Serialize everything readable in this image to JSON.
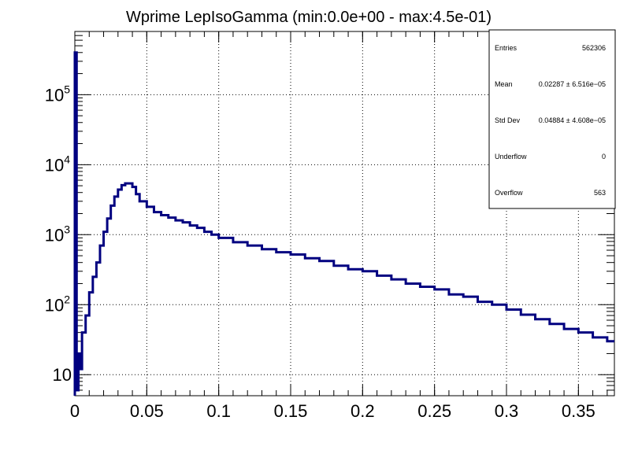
{
  "chart_data": {
    "type": "line",
    "title": "Wprime LepIsoGamma (min:0.0e+00 - max:4.5e-01)",
    "xlabel": "",
    "ylabel": "",
    "xlim": [
      0,
      0.375
    ],
    "ylim": [
      5,
      800000
    ],
    "y_scale": "log",
    "grid": true,
    "line_color": "#000080",
    "x_tick_labels": [
      "0",
      "0.05",
      "0.1",
      "0.15",
      "0.2",
      "0.25",
      "0.3",
      "0.35"
    ],
    "x_ticks": [
      0,
      0.05,
      0.1,
      0.15,
      0.2,
      0.25,
      0.3,
      0.35
    ],
    "y_tick_labels": [
      {
        "base": "10",
        "exp": "",
        "value": 10
      },
      {
        "base": "10",
        "exp": "2",
        "value": 100
      },
      {
        "base": "10",
        "exp": "3",
        "value": 1000
      },
      {
        "base": "10",
        "exp": "4",
        "value": 10000
      },
      {
        "base": "10",
        "exp": "5",
        "value": 100000
      }
    ],
    "x": [
      0.0,
      0.00125,
      0.0025,
      0.00375,
      0.005,
      0.0075,
      0.01,
      0.0125,
      0.015,
      0.0175,
      0.02,
      0.0225,
      0.025,
      0.0275,
      0.03,
      0.0325,
      0.035,
      0.0375,
      0.04,
      0.0425,
      0.045,
      0.05,
      0.055,
      0.06,
      0.065,
      0.07,
      0.075,
      0.08,
      0.085,
      0.09,
      0.095,
      0.1,
      0.11,
      0.12,
      0.13,
      0.14,
      0.15,
      0.16,
      0.17,
      0.18,
      0.19,
      0.2,
      0.21,
      0.22,
      0.23,
      0.24,
      0.25,
      0.26,
      0.27,
      0.28,
      0.29,
      0.3,
      0.31,
      0.32,
      0.33,
      0.34,
      0.35,
      0.36,
      0.37
    ],
    "y": [
      400000,
      6,
      20,
      12,
      40,
      70,
      150,
      250,
      400,
      700,
      1100,
      1700,
      2600,
      3500,
      4400,
      5100,
      5400,
      5400,
      4800,
      3800,
      3000,
      2500,
      2100,
      1900,
      1750,
      1600,
      1500,
      1350,
      1250,
      1100,
      1000,
      900,
      780,
      700,
      620,
      560,
      520,
      460,
      420,
      360,
      320,
      300,
      260,
      230,
      200,
      180,
      165,
      140,
      130,
      110,
      100,
      85,
      72,
      62,
      53,
      45,
      40,
      34,
      30
    ],
    "stats": {
      "rows": [
        {
          "label": "Entries",
          "value": "562306"
        },
        {
          "label": "Mean",
          "value": "0.02287  ± 6.516e−05"
        },
        {
          "label": "Std Dev",
          "value": "0.04884  ± 4.608e−05"
        },
        {
          "label": "Underflow",
          "value": "0"
        },
        {
          "label": "Overflow",
          "value": "563"
        }
      ]
    }
  }
}
